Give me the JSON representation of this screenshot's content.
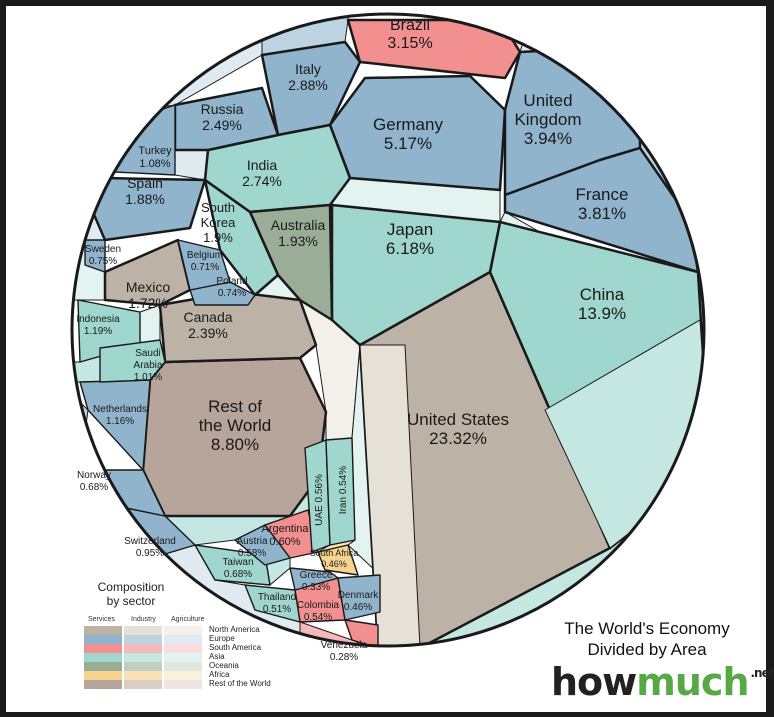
{
  "chart_data": {
    "type": "voronoi-treemap",
    "title_lines": [
      "The World's Economy",
      "Divided by Area"
    ],
    "brand": {
      "how": "how",
      "much": "much",
      "tld": ".net"
    },
    "legend": {
      "title_lines": [
        "Composition",
        "by sector"
      ],
      "columns": [
        "Services",
        "Industry",
        "Agriculture"
      ],
      "regions": [
        {
          "name": "North America",
          "colors": [
            "#bcb3a6",
            "#e6e1d7",
            "#f3f0ea"
          ]
        },
        {
          "name": "Europe",
          "colors": [
            "#8fb4cc",
            "#bcd3e1",
            "#dfeaf1"
          ]
        },
        {
          "name": "South America",
          "colors": [
            "#f28f8f",
            "#f6b9b9",
            "#fbdcdc"
          ]
        },
        {
          "name": "Asia",
          "colors": [
            "#9fd6cd",
            "#c4e7e1",
            "#e2f3f0"
          ]
        },
        {
          "name": "Oceania",
          "colors": [
            "#9aad97",
            "#c2cebf",
            "#e1e7df"
          ]
        },
        {
          "name": "Africa",
          "colors": [
            "#f6d38f",
            "#f9e2b5",
            "#fcf1da"
          ]
        },
        {
          "name": "Rest of the World",
          "colors": [
            "#b7a49a",
            "#d9cdc6",
            "#ece5e1"
          ]
        }
      ]
    },
    "countries": [
      {
        "name": "United States",
        "pct": "23.32%",
        "value": 23.32,
        "region": "North America"
      },
      {
        "name": "China",
        "pct": "13.9%",
        "value": 13.9,
        "region": "Asia"
      },
      {
        "name": "Rest of the World",
        "name_lines": [
          "Rest of",
          "the World"
        ],
        "pct": "8.80%",
        "value": 8.8,
        "region": "Rest of the World"
      },
      {
        "name": "Japan",
        "pct": "6.18%",
        "value": 6.18,
        "region": "Asia"
      },
      {
        "name": "Germany",
        "pct": "5.17%",
        "value": 5.17,
        "region": "Europe"
      },
      {
        "name": "United Kingdom",
        "name_lines": [
          "United",
          "Kingdom"
        ],
        "pct": "3.94%",
        "value": 3.94,
        "region": "Europe"
      },
      {
        "name": "France",
        "pct": "3.81%",
        "value": 3.81,
        "region": "Europe"
      },
      {
        "name": "Brazil",
        "pct": "3.15%",
        "value": 3.15,
        "region": "South America"
      },
      {
        "name": "Italy",
        "pct": "2.88%",
        "value": 2.88,
        "region": "Europe"
      },
      {
        "name": "India",
        "pct": "2.74%",
        "value": 2.74,
        "region": "Asia"
      },
      {
        "name": "Russia",
        "pct": "2.49%",
        "value": 2.49,
        "region": "Europe"
      },
      {
        "name": "Canada",
        "pct": "2.39%",
        "value": 2.39,
        "region": "North America"
      },
      {
        "name": "Australia",
        "pct": "1.93%",
        "value": 1.93,
        "region": "Oceania"
      },
      {
        "name": "South Korea",
        "name_lines": [
          "South",
          "Korea"
        ],
        "pct": "1.9%",
        "value": 1.9,
        "region": "Asia"
      },
      {
        "name": "Spain",
        "pct": "1.88%",
        "value": 1.88,
        "region": "Europe"
      },
      {
        "name": "Mexico",
        "pct": "1.72%",
        "value": 1.72,
        "region": "North America"
      },
      {
        "name": "Indonesia",
        "pct": "1.19%",
        "value": 1.19,
        "region": "Asia"
      },
      {
        "name": "Netherlands",
        "pct": "1.16%",
        "value": 1.16,
        "region": "Europe"
      },
      {
        "name": "Turkey",
        "pct": "1.08%",
        "value": 1.08,
        "region": "Europe"
      },
      {
        "name": "Saudi Arabia",
        "name_lines": [
          "Saudi",
          "Arabia"
        ],
        "pct": "1.01%",
        "value": 1.01,
        "region": "Asia"
      },
      {
        "name": "Switzerland",
        "pct": "0.95%",
        "value": 0.95,
        "region": "Europe"
      },
      {
        "name": "Sweden",
        "pct": "0.75%",
        "value": 0.75,
        "region": "Europe"
      },
      {
        "name": "Poland",
        "pct": "0.74%",
        "value": 0.74,
        "region": "Europe"
      },
      {
        "name": "Belgium",
        "pct": "0.71%",
        "value": 0.71,
        "region": "Europe"
      },
      {
        "name": "Norway",
        "pct": "0.68%",
        "value": 0.68,
        "region": "Europe"
      },
      {
        "name": "Taiwan",
        "pct": "0.68%",
        "value": 0.68,
        "region": "Asia"
      },
      {
        "name": "Argentina",
        "pct": "0.60%",
        "value": 0.6,
        "region": "South America"
      },
      {
        "name": "Austria",
        "pct": "0.58%",
        "value": 0.58,
        "region": "Europe"
      },
      {
        "name": "UAE",
        "pct": "0.56%",
        "value": 0.56,
        "region": "Asia"
      },
      {
        "name": "Colombia",
        "pct": "0.54%",
        "value": 0.54,
        "region": "South America"
      },
      {
        "name": "Iran",
        "pct": "0.54%",
        "value": 0.54,
        "region": "Asia"
      },
      {
        "name": "Thailand",
        "pct": "0.51%",
        "value": 0.51,
        "region": "Asia"
      },
      {
        "name": "South Africa",
        "pct": "0.46%",
        "value": 0.46,
        "region": "Africa"
      },
      {
        "name": "Denmark",
        "pct": "0.46%",
        "value": 0.46,
        "region": "Europe"
      },
      {
        "name": "Greece",
        "pct": "0.33%",
        "value": 0.33,
        "region": "Europe"
      },
      {
        "name": "Venezuela",
        "pct": "0.28%",
        "value": 0.28,
        "region": "South America"
      }
    ]
  }
}
